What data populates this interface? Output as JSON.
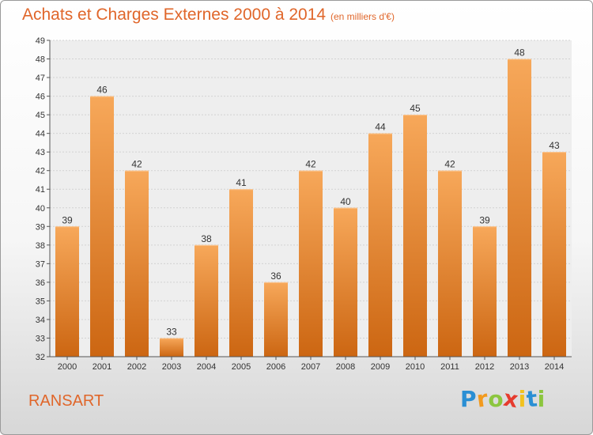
{
  "header": {
    "title": "Achats et Charges Externes 2000 à 2014",
    "subtitle": "(en milliers d'€)"
  },
  "footer": {
    "city": "RANSART",
    "logo_letters": [
      {
        "char": "P",
        "color": "#2a8fd4"
      },
      {
        "char": "r",
        "color": "#f29a1e"
      },
      {
        "char": "o",
        "color": "#8cc63f"
      },
      {
        "char": "x",
        "color": "#e63b2e"
      },
      {
        "char": "i",
        "color": "#f2c21e"
      },
      {
        "char": "t",
        "color": "#2a8fd4"
      },
      {
        "char": "i",
        "color": "#8cc63f"
      }
    ]
  },
  "chart_data": {
    "type": "bar",
    "title": "Achats et Charges Externes 2000 à 2014",
    "subtitle": "(en milliers d'€)",
    "categories": [
      "2000",
      "2001",
      "2002",
      "2003",
      "2004",
      "2005",
      "2006",
      "2007",
      "2008",
      "2009",
      "2010",
      "2011",
      "2012",
      "2013",
      "2014"
    ],
    "values": [
      39,
      46,
      42,
      33,
      38,
      41,
      36,
      42,
      40,
      44,
      45,
      42,
      39,
      48,
      43
    ],
    "ylim": [
      32,
      49
    ],
    "yticks": [
      32,
      33,
      34,
      35,
      36,
      37,
      38,
      39,
      40,
      41,
      42,
      43,
      44,
      45,
      46,
      47,
      48,
      49
    ],
    "grid": true,
    "bar_color_top": "#f7a85a",
    "bar_color_bottom": "#cc6612"
  }
}
